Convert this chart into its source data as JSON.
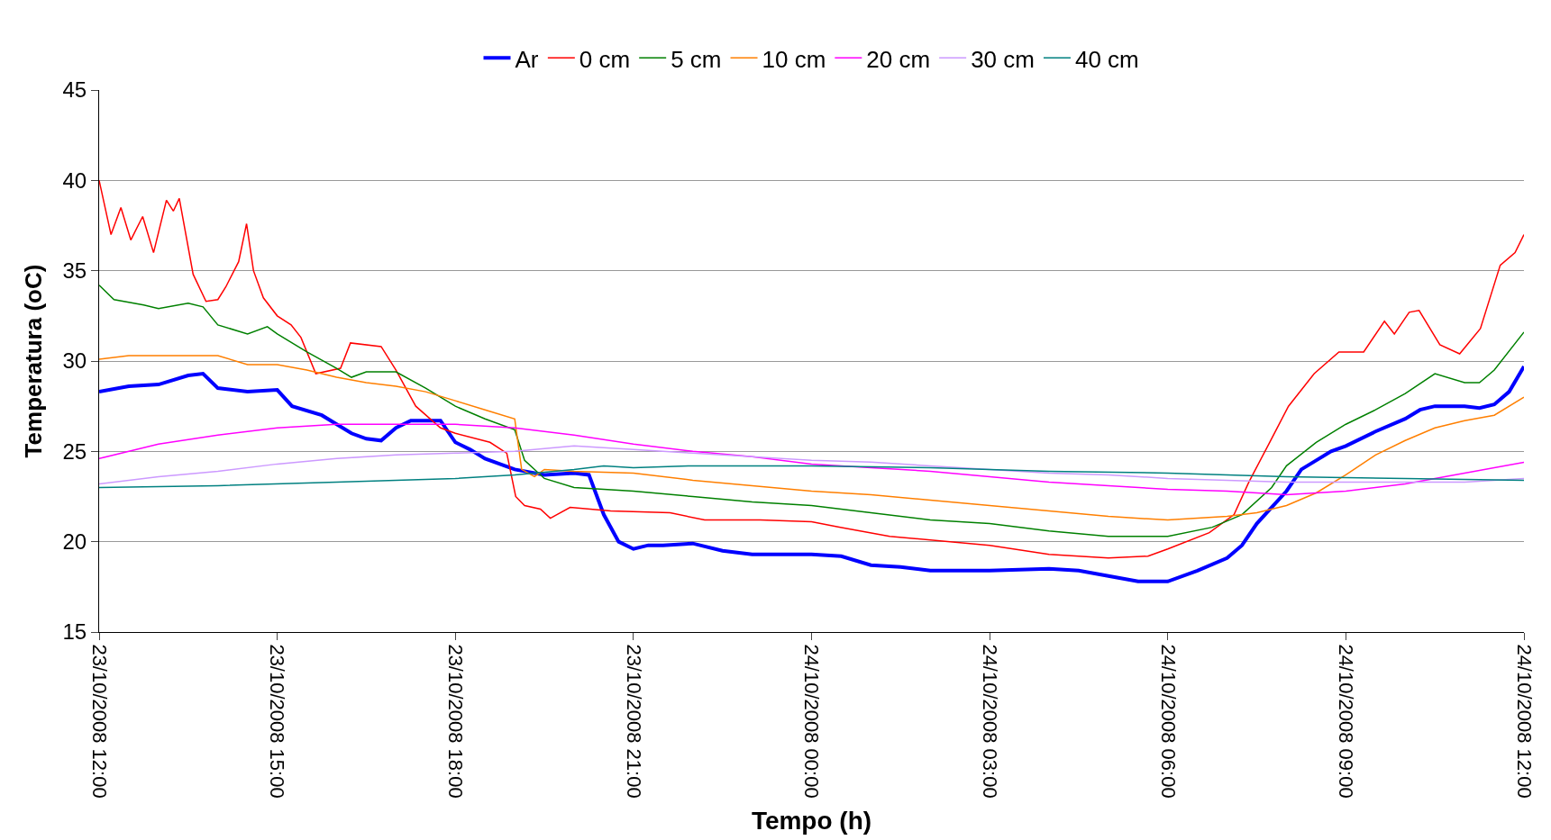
{
  "chart_data": {
    "type": "line",
    "xlabel": "Tempo (h)",
    "ylabel": "Temperatura (oC)",
    "xlim": [
      "2008-10-23T12:00",
      "2008-10-24T12:00"
    ],
    "xticks": [
      {
        "value": "2008-10-23T12:00",
        "label": "23/10/2008 12:00"
      },
      {
        "value": "2008-10-23T15:00",
        "label": "23/10/2008 15:00"
      },
      {
        "value": "2008-10-23T18:00",
        "label": "23/10/2008 18:00"
      },
      {
        "value": "2008-10-23T21:00",
        "label": "23/10/2008 21:00"
      },
      {
        "value": "2008-10-24T00:00",
        "label": "24/10/2008 00:00"
      },
      {
        "value": "2008-10-24T03:00",
        "label": "24/10/2008 03:00"
      },
      {
        "value": "2008-10-24T06:00",
        "label": "24/10/2008 06:00"
      },
      {
        "value": "2008-10-24T09:00",
        "label": "24/10/2008 09:00"
      },
      {
        "value": "2008-10-24T12:00",
        "label": "24/10/2008 12:00"
      }
    ],
    "ylim": [
      15,
      45
    ],
    "yticks": [
      15,
      20,
      25,
      30,
      35,
      40,
      45
    ],
    "grid": "y",
    "legend": "top",
    "marker": "none",
    "line_style": "solid",
    "series": [
      {
        "name": "Ar",
        "color": "#0000ff",
        "x": [
          "2008-10-23T12:00",
          "2008-10-23T12:30",
          "2008-10-23T13:00",
          "2008-10-23T13:30",
          "2008-10-23T13:45",
          "2008-10-23T14:00",
          "2008-10-23T14:30",
          "2008-10-23T15:00",
          "2008-10-23T15:15",
          "2008-10-23T15:45",
          "2008-10-23T16:15",
          "2008-10-23T16:30",
          "2008-10-23T16:45",
          "2008-10-23T17:00",
          "2008-10-23T17:15",
          "2008-10-23T17:45",
          "2008-10-23T18:00",
          "2008-10-23T18:15",
          "2008-10-23T18:30",
          "2008-10-23T19:00",
          "2008-10-23T19:30",
          "2008-10-23T20:00",
          "2008-10-23T20:15",
          "2008-10-23T20:30",
          "2008-10-23T20:45",
          "2008-10-23T21:00",
          "2008-10-23T21:15",
          "2008-10-23T21:30",
          "2008-10-23T22:00",
          "2008-10-23T22:30",
          "2008-10-23T23:00",
          "2008-10-24T00:00",
          "2008-10-24T00:30",
          "2008-10-24T01:00",
          "2008-10-24T01:30",
          "2008-10-24T02:00",
          "2008-10-24T03:00",
          "2008-10-24T04:00",
          "2008-10-24T04:30",
          "2008-10-24T05:00",
          "2008-10-24T05:30",
          "2008-10-24T06:00",
          "2008-10-24T06:30",
          "2008-10-24T07:00",
          "2008-10-24T07:15",
          "2008-10-24T07:30",
          "2008-10-24T08:00",
          "2008-10-24T08:15",
          "2008-10-24T08:30",
          "2008-10-24T08:45",
          "2008-10-24T09:00",
          "2008-10-24T09:30",
          "2008-10-24T10:00",
          "2008-10-24T10:15",
          "2008-10-24T10:30",
          "2008-10-24T11:00",
          "2008-10-24T11:15",
          "2008-10-24T11:30",
          "2008-10-24T11:45",
          "2008-10-24T12:00"
        ],
        "values": [
          28.3,
          28.6,
          28.7,
          29.2,
          29.3,
          28.5,
          28.3,
          28.4,
          27.5,
          27.0,
          26.0,
          25.7,
          25.6,
          26.3,
          26.7,
          26.7,
          25.5,
          25.1,
          24.6,
          24.0,
          23.7,
          23.8,
          23.7,
          21.5,
          20.0,
          19.6,
          19.8,
          19.8,
          19.9,
          19.5,
          19.3,
          19.3,
          19.2,
          18.7,
          18.6,
          18.4,
          18.4,
          18.5,
          18.4,
          18.1,
          17.8,
          17.8,
          18.4,
          19.1,
          19.8,
          21.0,
          22.8,
          24.0,
          24.5,
          25.0,
          25.3,
          26.1,
          26.8,
          27.3,
          27.5,
          27.5,
          27.4,
          27.6,
          28.3,
          29.7
        ]
      },
      {
        "name": "0 cm",
        "color": "#ff0000",
        "x": [
          "2008-10-23T12:00",
          "2008-10-23T12:12",
          "2008-10-23T12:22",
          "2008-10-23T12:32",
          "2008-10-23T12:44",
          "2008-10-23T12:55",
          "2008-10-23T13:08",
          "2008-10-23T13:15",
          "2008-10-23T13:21",
          "2008-10-23T13:35",
          "2008-10-23T13:48",
          "2008-10-23T14:00",
          "2008-10-23T14:08",
          "2008-10-23T14:21",
          "2008-10-23T14:29",
          "2008-10-23T14:36",
          "2008-10-23T14:46",
          "2008-10-23T15:00",
          "2008-10-23T15:14",
          "2008-10-23T15:24",
          "2008-10-23T15:39",
          "2008-10-23T16:04",
          "2008-10-23T16:14",
          "2008-10-23T16:45",
          "2008-10-23T17:00",
          "2008-10-23T17:20",
          "2008-10-23T17:45",
          "2008-10-23T18:00",
          "2008-10-23T18:35",
          "2008-10-23T18:52",
          "2008-10-23T19:01",
          "2008-10-23T19:10",
          "2008-10-23T19:26",
          "2008-10-23T19:36",
          "2008-10-23T19:56",
          "2008-10-23T20:37",
          "2008-10-23T21:37",
          "2008-10-23T22:12",
          "2008-10-23T23:08",
          "2008-10-24T00:00",
          "2008-10-24T00:28",
          "2008-10-24T01:19",
          "2008-10-24T02:20",
          "2008-10-24T03:00",
          "2008-10-24T04:00",
          "2008-10-24T05:00",
          "2008-10-24T05:40",
          "2008-10-24T06:00",
          "2008-10-24T06:42",
          "2008-10-24T07:07",
          "2008-10-24T07:22",
          "2008-10-24T07:43",
          "2008-10-24T08:02",
          "2008-10-24T08:28",
          "2008-10-24T08:53",
          "2008-10-24T09:18",
          "2008-10-24T09:39",
          "2008-10-24T09:49",
          "2008-10-24T10:04",
          "2008-10-24T10:14",
          "2008-10-24T10:35",
          "2008-10-24T10:55",
          "2008-10-24T11:16",
          "2008-10-24T11:36",
          "2008-10-24T11:51",
          "2008-10-24T12:00"
        ],
        "values": [
          40.0,
          37.0,
          38.5,
          36.7,
          38.0,
          36.0,
          38.9,
          38.3,
          39.0,
          34.8,
          33.3,
          33.4,
          34.1,
          35.5,
          37.6,
          35.0,
          33.5,
          32.5,
          32.0,
          31.3,
          29.3,
          29.6,
          31.0,
          30.8,
          29.5,
          27.5,
          26.3,
          26.0,
          25.5,
          24.9,
          22.5,
          22.0,
          21.8,
          21.3,
          21.9,
          21.7,
          21.6,
          21.2,
          21.2,
          21.1,
          20.8,
          20.3,
          20.0,
          19.8,
          19.3,
          19.1,
          19.2,
          19.6,
          20.5,
          21.5,
          23.3,
          25.5,
          27.5,
          29.3,
          30.5,
          30.5,
          32.2,
          31.5,
          32.7,
          32.8,
          30.9,
          30.4,
          31.8,
          35.3,
          36.0,
          37.0
        ]
      },
      {
        "name": "5 cm",
        "color": "#008000",
        "x": [
          "2008-10-23T12:00",
          "2008-10-23T12:15",
          "2008-10-23T12:45",
          "2008-10-23T13:00",
          "2008-10-23T13:30",
          "2008-10-23T13:45",
          "2008-10-23T14:00",
          "2008-10-23T14:30",
          "2008-10-23T14:50",
          "2008-10-23T15:00",
          "2008-10-23T15:30",
          "2008-10-23T16:00",
          "2008-10-23T16:15",
          "2008-10-23T16:30",
          "2008-10-23T17:00",
          "2008-10-23T17:30",
          "2008-10-23T18:00",
          "2008-10-23T18:30",
          "2008-10-23T19:00",
          "2008-10-23T19:10",
          "2008-10-23T19:30",
          "2008-10-23T20:00",
          "2008-10-23T21:00",
          "2008-10-23T22:00",
          "2008-10-23T23:00",
          "2008-10-24T00:00",
          "2008-10-24T01:00",
          "2008-10-24T02:00",
          "2008-10-24T03:00",
          "2008-10-24T04:00",
          "2008-10-24T05:00",
          "2008-10-24T06:00",
          "2008-10-24T06:45",
          "2008-10-24T07:15",
          "2008-10-24T07:45",
          "2008-10-24T08:00",
          "2008-10-24T08:30",
          "2008-10-24T09:00",
          "2008-10-24T09:30",
          "2008-10-24T10:00",
          "2008-10-24T10:30",
          "2008-10-24T11:00",
          "2008-10-24T11:15",
          "2008-10-24T11:30",
          "2008-10-24T12:00"
        ],
        "values": [
          34.2,
          33.4,
          33.1,
          32.9,
          33.2,
          33.0,
          32.0,
          31.5,
          31.9,
          31.5,
          30.5,
          29.6,
          29.1,
          29.4,
          29.4,
          28.5,
          27.5,
          26.8,
          26.2,
          24.5,
          23.5,
          23.0,
          22.8,
          22.5,
          22.2,
          22.0,
          21.6,
          21.2,
          21.0,
          20.6,
          20.3,
          20.3,
          20.8,
          21.5,
          23.0,
          24.2,
          25.5,
          26.5,
          27.3,
          28.2,
          29.3,
          28.8,
          28.8,
          29.5,
          31.6
        ]
      },
      {
        "name": "10 cm",
        "color": "#ff7f00",
        "x": [
          "2008-10-23T12:00",
          "2008-10-23T12:30",
          "2008-10-23T14:00",
          "2008-10-23T14:30",
          "2008-10-23T15:00",
          "2008-10-23T15:30",
          "2008-10-23T16:00",
          "2008-10-23T16:30",
          "2008-10-23T17:00",
          "2008-10-23T17:30",
          "2008-10-23T18:00",
          "2008-10-23T18:30",
          "2008-10-23T19:00",
          "2008-10-23T19:07",
          "2008-10-23T19:20",
          "2008-10-23T19:30",
          "2008-10-23T20:00",
          "2008-10-23T21:00",
          "2008-10-23T22:00",
          "2008-10-23T23:00",
          "2008-10-24T00:00",
          "2008-10-24T01:00",
          "2008-10-24T02:00",
          "2008-10-24T03:00",
          "2008-10-24T04:00",
          "2008-10-24T05:00",
          "2008-10-24T06:00",
          "2008-10-24T07:00",
          "2008-10-24T07:30",
          "2008-10-24T08:00",
          "2008-10-24T08:30",
          "2008-10-24T09:00",
          "2008-10-24T09:30",
          "2008-10-24T10:00",
          "2008-10-24T10:30",
          "2008-10-24T11:00",
          "2008-10-24T11:30",
          "2008-10-24T12:00"
        ],
        "values": [
          30.1,
          30.3,
          30.3,
          29.8,
          29.8,
          29.5,
          29.1,
          28.8,
          28.6,
          28.3,
          27.8,
          27.3,
          26.8,
          24.0,
          23.6,
          24.0,
          23.9,
          23.8,
          23.4,
          23.1,
          22.8,
          22.6,
          22.3,
          22.0,
          21.7,
          21.4,
          21.2,
          21.4,
          21.6,
          22.0,
          22.7,
          23.7,
          24.8,
          25.6,
          26.3,
          26.7,
          27.0,
          28.0
        ]
      },
      {
        "name": "20 cm",
        "color": "#ff00ff",
        "x": [
          "2008-10-23T12:00",
          "2008-10-23T13:00",
          "2008-10-23T14:00",
          "2008-10-23T15:00",
          "2008-10-23T16:00",
          "2008-10-23T18:00",
          "2008-10-23T19:00",
          "2008-10-23T20:00",
          "2008-10-23T21:00",
          "2008-10-23T22:00",
          "2008-10-23T23:00",
          "2008-10-24T00:00",
          "2008-10-24T01:00",
          "2008-10-24T02:00",
          "2008-10-24T03:00",
          "2008-10-24T04:00",
          "2008-10-24T05:00",
          "2008-10-24T06:00",
          "2008-10-24T07:00",
          "2008-10-24T08:00",
          "2008-10-24T09:00",
          "2008-10-24T10:00",
          "2008-10-24T11:00",
          "2008-10-24T12:00"
        ],
        "values": [
          24.6,
          25.4,
          25.9,
          26.3,
          26.5,
          26.5,
          26.3,
          25.9,
          25.4,
          25.0,
          24.7,
          24.3,
          24.1,
          23.9,
          23.6,
          23.3,
          23.1,
          22.9,
          22.8,
          22.6,
          22.8,
          23.2,
          23.8,
          24.4
        ]
      },
      {
        "name": "30 cm",
        "color": "#cc99ff",
        "x": [
          "2008-10-23T12:00",
          "2008-10-23T13:00",
          "2008-10-23T14:00",
          "2008-10-23T15:00",
          "2008-10-23T16:00",
          "2008-10-23T17:00",
          "2008-10-23T18:00",
          "2008-10-23T19:00",
          "2008-10-23T20:00",
          "2008-10-23T21:00",
          "2008-10-23T22:00",
          "2008-10-23T23:00",
          "2008-10-24T00:00",
          "2008-10-24T01:00",
          "2008-10-24T02:00",
          "2008-10-24T03:00",
          "2008-10-24T04:00",
          "2008-10-24T05:00",
          "2008-10-24T06:00",
          "2008-10-24T07:00",
          "2008-10-24T08:00",
          "2008-10-24T09:00",
          "2008-10-24T10:00",
          "2008-10-24T11:00",
          "2008-10-24T12:00"
        ],
        "values": [
          23.2,
          23.6,
          23.9,
          24.3,
          24.6,
          24.8,
          24.9,
          25.0,
          25.3,
          25.1,
          24.9,
          24.7,
          24.5,
          24.4,
          24.2,
          24.0,
          23.8,
          23.7,
          23.5,
          23.4,
          23.3,
          23.3,
          23.3,
          23.3,
          23.5
        ]
      },
      {
        "name": "40 cm",
        "color": "#008080",
        "x": [
          "2008-10-23T12:00",
          "2008-10-23T14:00",
          "2008-10-23T16:00",
          "2008-10-23T18:00",
          "2008-10-23T19:00",
          "2008-10-23T20:00",
          "2008-10-23T20:30",
          "2008-10-23T21:00",
          "2008-10-23T22:00",
          "2008-10-24T00:00",
          "2008-10-24T02:00",
          "2008-10-24T04:00",
          "2008-10-24T06:00",
          "2008-10-24T08:00",
          "2008-10-24T10:00",
          "2008-10-24T12:00"
        ],
        "values": [
          23.0,
          23.1,
          23.3,
          23.5,
          23.7,
          24.0,
          24.2,
          24.1,
          24.2,
          24.2,
          24.1,
          23.9,
          23.8,
          23.6,
          23.5,
          23.4
        ]
      }
    ]
  }
}
